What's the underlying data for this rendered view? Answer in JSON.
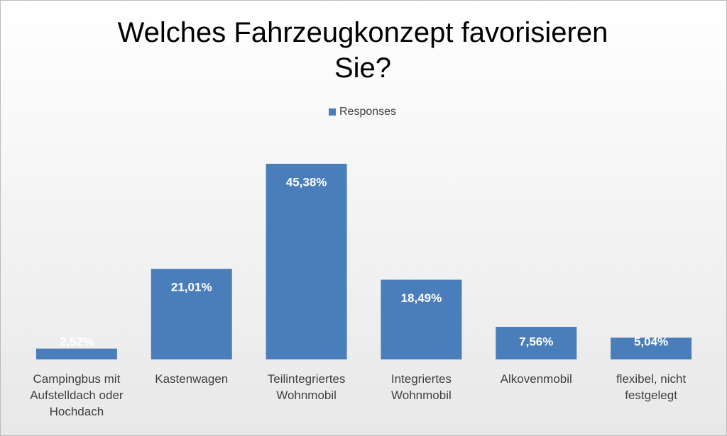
{
  "chart_data": {
    "type": "bar",
    "title": "Welches Fahrzeugkonzept favorisieren Sie?",
    "categories": [
      "Campingbus mit Aufstelldach oder Hochdach",
      "Kastenwagen",
      "Teilintegriertes Wohnmobil",
      "Integriertes Wohnmobil",
      "Alkovenmobil",
      "flexibel, nicht festgelegt"
    ],
    "series": [
      {
        "name": "Responses",
        "color": "#4a7ebb",
        "values": [
          2.52,
          21.01,
          45.38,
          18.49,
          7.56,
          5.04
        ],
        "value_labels": [
          "2,52%",
          "21,01%",
          "45,38%",
          "18,49%",
          "7,56%",
          "5,04%"
        ]
      }
    ],
    "legend": "top"
  }
}
